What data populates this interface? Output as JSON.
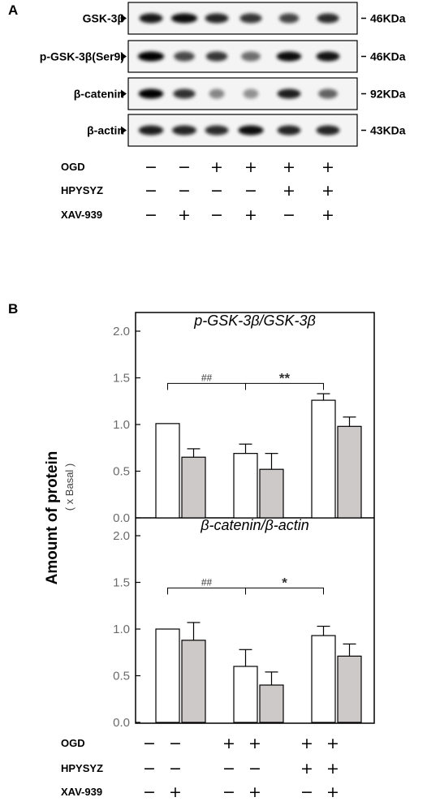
{
  "panel_a": {
    "letter": "A",
    "blots": [
      {
        "label": "GSK-3β",
        "size": "46KDa",
        "bands": [
          0.9,
          0.95,
          0.85,
          0.78,
          0.72,
          0.82
        ],
        "widths": [
          0.85,
          0.95,
          0.85,
          0.8,
          0.72,
          0.8
        ]
      },
      {
        "label": "p-GSK-3β(Ser9)",
        "size": "46KDa",
        "bands": [
          1.0,
          0.7,
          0.78,
          0.55,
          0.95,
          0.92
        ],
        "widths": [
          0.95,
          0.75,
          0.78,
          0.7,
          0.9,
          0.85
        ]
      },
      {
        "label": "β-catenin",
        "size": "92KDa",
        "bands": [
          1.0,
          0.8,
          0.45,
          0.4,
          0.88,
          0.6
        ],
        "widths": [
          0.9,
          0.8,
          0.55,
          0.55,
          0.85,
          0.7
        ]
      },
      {
        "label": "β-actin",
        "size": "43KDa",
        "bands": [
          0.88,
          0.85,
          0.82,
          0.95,
          0.85,
          0.85
        ],
        "widths": [
          0.9,
          0.88,
          0.85,
          0.92,
          0.85,
          0.85
        ]
      }
    ],
    "conditions": [
      {
        "label": "OGD",
        "signs": [
          "−",
          "−",
          "+",
          "+",
          "+",
          "+"
        ]
      },
      {
        "label": "HPYSYZ",
        "signs": [
          "−",
          "−",
          "−",
          "−",
          "+",
          "+"
        ]
      },
      {
        "label": "XAV-939",
        "signs": [
          "−",
          "+",
          "−",
          "+",
          "−",
          "+"
        ]
      }
    ]
  },
  "panel_b": {
    "letter": "B",
    "ylabel": "Amount of protein",
    "ylabel_sub": "( x Basal )",
    "conditions": [
      {
        "label": "OGD",
        "signs": [
          "−",
          "−",
          "+",
          "+",
          "+",
          "+"
        ]
      },
      {
        "label": "HPYSYZ",
        "signs": [
          "−",
          "−",
          "−",
          "−",
          "+",
          "+"
        ]
      },
      {
        "label": "XAV-939",
        "signs": [
          "−",
          "+",
          "−",
          "+",
          "−",
          "+"
        ]
      }
    ]
  },
  "chart_data": [
    {
      "type": "bar",
      "title": "p-GSK-3β/GSK-3β",
      "ylabel": "Amount of protein ( x Basal )",
      "ylim": [
        0,
        2.0
      ],
      "yticks": [
        "0.0",
        "0.5",
        "1.0",
        "1.5",
        "2.0"
      ],
      "values": [
        1.01,
        0.65,
        0.69,
        0.52,
        1.26,
        0.98
      ],
      "errors": [
        0.0,
        0.09,
        0.1,
        0.17,
        0.07,
        0.1
      ],
      "bar_colors": [
        "#ffffff",
        "#cdc9c8",
        "#ffffff",
        "#cdc9c8",
        "#ffffff",
        "#cdc9c8"
      ],
      "annotations": [
        {
          "text": "##",
          "from": 0,
          "to": 2,
          "y": 1.44
        },
        {
          "text": "**",
          "from": 2,
          "to": 4,
          "y": 1.44
        }
      ]
    },
    {
      "type": "bar",
      "title": "β-catenin/β-actin",
      "ylabel": "Amount of protein ( x Basal )",
      "ylim": [
        0,
        2.0
      ],
      "yticks": [
        "0.0",
        "0.5",
        "1.0",
        "1.5",
        "2.0"
      ],
      "values": [
        1.0,
        0.88,
        0.6,
        0.4,
        0.93,
        0.71
      ],
      "errors": [
        0.0,
        0.19,
        0.18,
        0.14,
        0.1,
        0.13
      ],
      "bar_colors": [
        "#ffffff",
        "#cdc9c8",
        "#ffffff",
        "#cdc9c8",
        "#ffffff",
        "#cdc9c8"
      ],
      "annotations": [
        {
          "text": "##",
          "from": 0,
          "to": 2,
          "y": 1.44
        },
        {
          "text": "*",
          "from": 2,
          "to": 4,
          "y": 1.44
        }
      ]
    }
  ]
}
